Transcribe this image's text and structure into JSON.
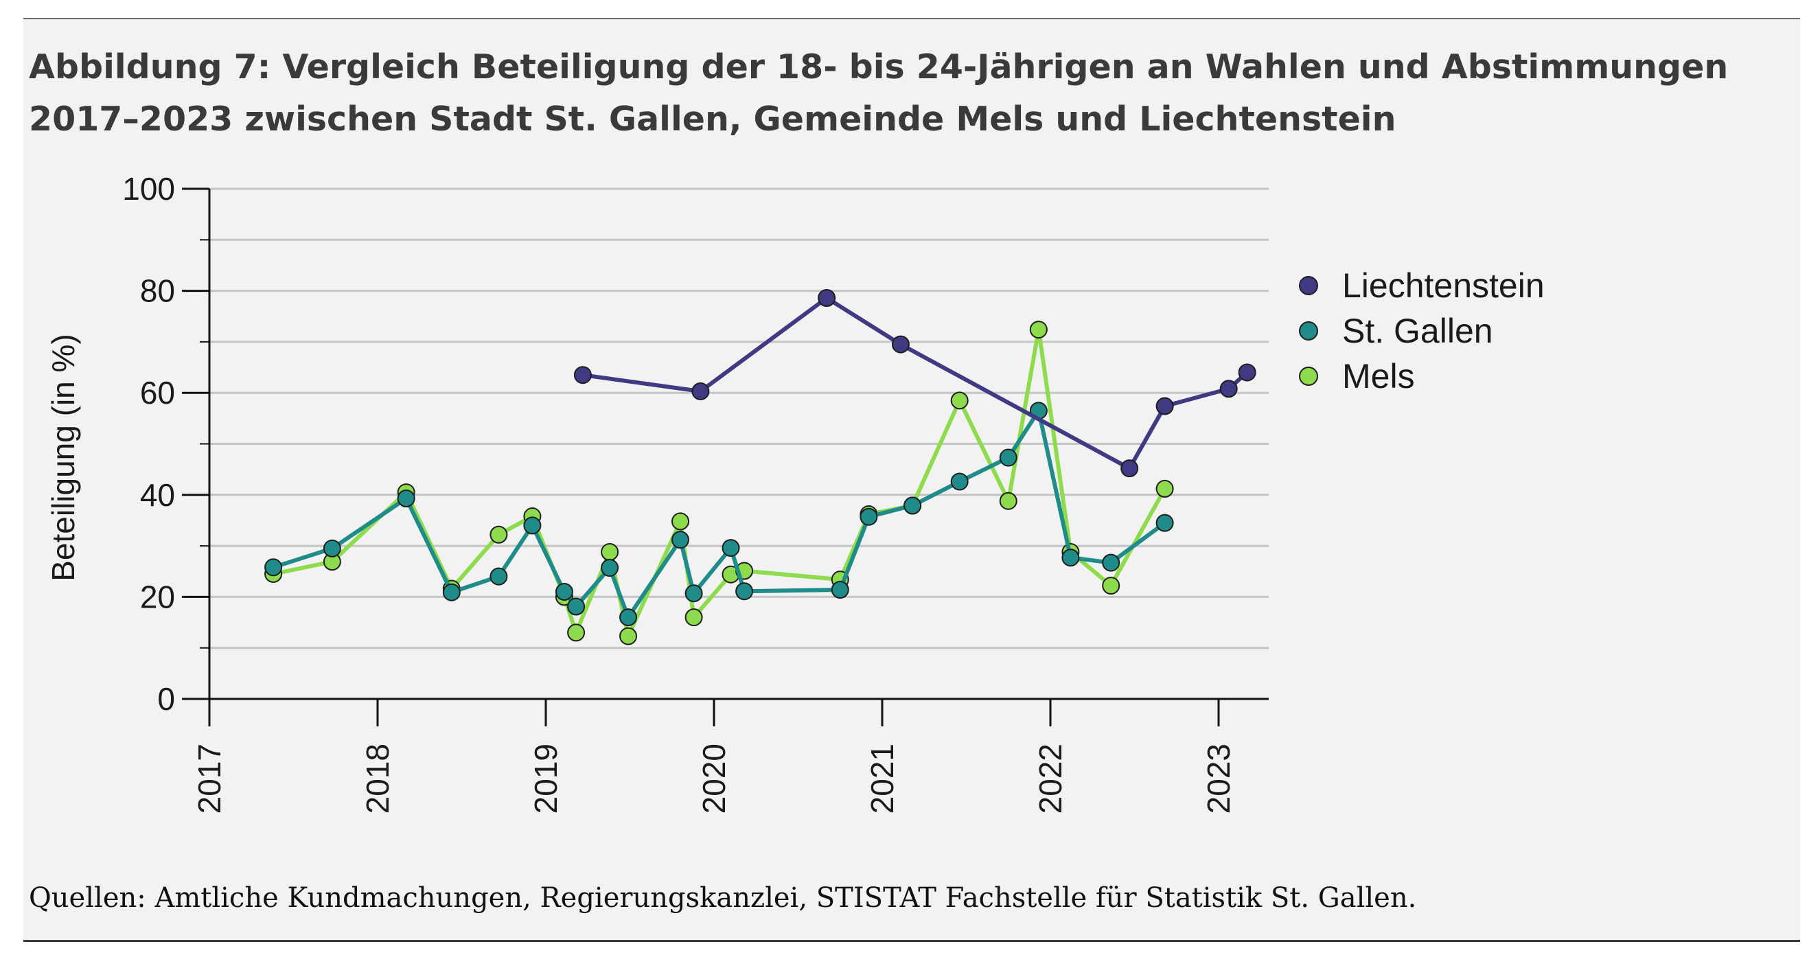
{
  "figure": {
    "title": "Abbildung 7: Vergleich Beteiligung der 18- bis 24-Jährigen an Wahlen und Abstimmungen 2017–2023 zwischen Stadt St. Gallen, Gemeinde Mels und Liechtenstein",
    "source": "Quellen: Amtliche Kundmachungen, Regierungskanzlei, STISTAT Fachstelle für Statistik St. Gallen."
  },
  "chart_data": {
    "type": "line",
    "title": "Abbildung 7: Vergleich Beteiligung der 18- bis 24-Jährigen an Wahlen und Abstimmungen 2017–2023 zwischen Stadt St. Gallen, Gemeinde Mels und Liechtenstein",
    "xlabel": "",
    "ylabel": "Beteiligung (in %)",
    "xlim": [
      2017,
      2023.35
    ],
    "ylim": [
      0,
      100
    ],
    "yticks": [
      0,
      20,
      40,
      60,
      80,
      100
    ],
    "yminor": [
      10,
      30,
      50,
      70,
      90
    ],
    "xticks": [
      2017,
      2018,
      2019,
      2020,
      2021,
      2022,
      2023
    ],
    "grid": true,
    "legend_position": "right",
    "series": [
      {
        "name": "Liechtenstein",
        "color": "#3f3a82",
        "points": [
          {
            "x": 2019.22,
            "y": 63.5
          },
          {
            "x": 2019.92,
            "y": 60.3
          },
          {
            "x": 2020.67,
            "y": 78.6
          },
          {
            "x": 2021.11,
            "y": 69.5
          },
          {
            "x": 2022.47,
            "y": 45.2
          },
          {
            "x": 2022.68,
            "y": 57.4
          },
          {
            "x": 2023.06,
            "y": 60.8
          },
          {
            "x": 2023.17,
            "y": 64.0
          }
        ]
      },
      {
        "name": "St. Gallen",
        "color": "#1f8c8a",
        "points": [
          {
            "x": 2017.38,
            "y": 25.8
          },
          {
            "x": 2017.73,
            "y": 29.5
          },
          {
            "x": 2018.17,
            "y": 39.3
          },
          {
            "x": 2018.44,
            "y": 20.9
          },
          {
            "x": 2018.72,
            "y": 24.0
          },
          {
            "x": 2018.92,
            "y": 34.0
          },
          {
            "x": 2019.11,
            "y": 21.0
          },
          {
            "x": 2019.18,
            "y": 18.1
          },
          {
            "x": 2019.38,
            "y": 25.7
          },
          {
            "x": 2019.49,
            "y": 16.0
          },
          {
            "x": 2019.8,
            "y": 31.2
          },
          {
            "x": 2019.88,
            "y": 20.7
          },
          {
            "x": 2020.1,
            "y": 29.6
          },
          {
            "x": 2020.18,
            "y": 21.1
          },
          {
            "x": 2020.75,
            "y": 21.4
          },
          {
            "x": 2020.92,
            "y": 35.7
          },
          {
            "x": 2021.18,
            "y": 37.9
          },
          {
            "x": 2021.46,
            "y": 42.6
          },
          {
            "x": 2021.75,
            "y": 47.3
          },
          {
            "x": 2021.93,
            "y": 56.5
          },
          {
            "x": 2022.12,
            "y": 27.7
          },
          {
            "x": 2022.36,
            "y": 26.7
          },
          {
            "x": 2022.68,
            "y": 34.5
          }
        ]
      },
      {
        "name": "Mels",
        "color": "#8edb4e",
        "points": [
          {
            "x": 2017.38,
            "y": 24.5
          },
          {
            "x": 2017.73,
            "y": 26.9
          },
          {
            "x": 2018.17,
            "y": 40.5
          },
          {
            "x": 2018.44,
            "y": 21.6
          },
          {
            "x": 2018.72,
            "y": 32.2
          },
          {
            "x": 2018.92,
            "y": 35.8
          },
          {
            "x": 2019.11,
            "y": 20.0
          },
          {
            "x": 2019.18,
            "y": 13.0
          },
          {
            "x": 2019.38,
            "y": 28.8
          },
          {
            "x": 2019.49,
            "y": 12.3
          },
          {
            "x": 2019.8,
            "y": 34.8
          },
          {
            "x": 2019.88,
            "y": 16.0
          },
          {
            "x": 2020.1,
            "y": 24.4
          },
          {
            "x": 2020.18,
            "y": 25.1
          },
          {
            "x": 2020.75,
            "y": 23.4
          },
          {
            "x": 2020.92,
            "y": 36.2
          },
          {
            "x": 2021.18,
            "y": 37.9
          },
          {
            "x": 2021.46,
            "y": 58.5
          },
          {
            "x": 2021.75,
            "y": 38.8
          },
          {
            "x": 2021.93,
            "y": 72.4
          },
          {
            "x": 2022.12,
            "y": 28.8
          },
          {
            "x": 2022.36,
            "y": 22.2
          },
          {
            "x": 2022.68,
            "y": 41.2
          }
        ]
      }
    ]
  }
}
